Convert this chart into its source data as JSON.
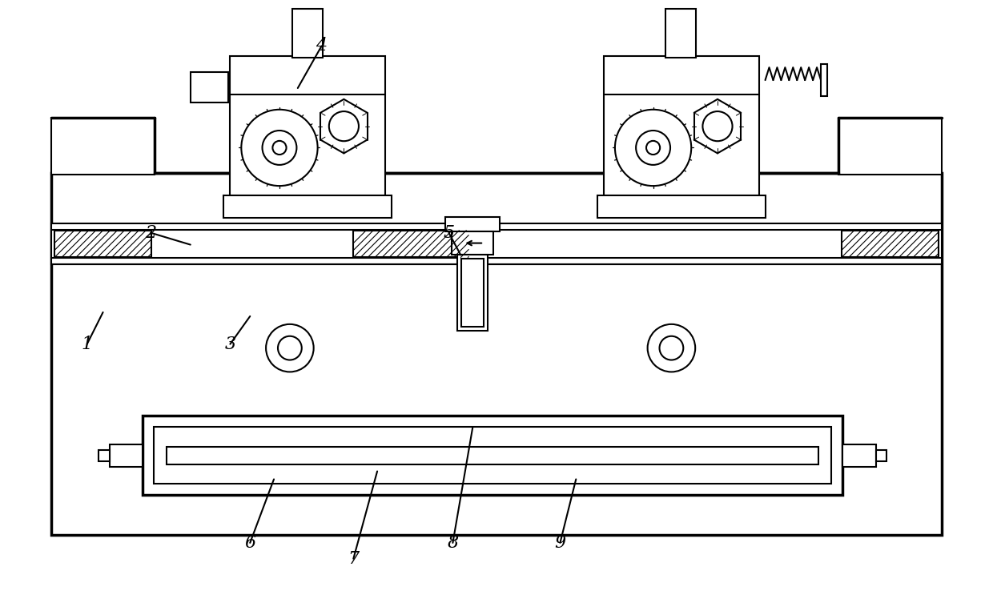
{
  "bg_color": "#ffffff",
  "line_color": "#000000",
  "lw": 1.5,
  "tlw": 2.5,
  "fig_width": 12.4,
  "fig_height": 7.68,
  "label_fontsize": 16
}
